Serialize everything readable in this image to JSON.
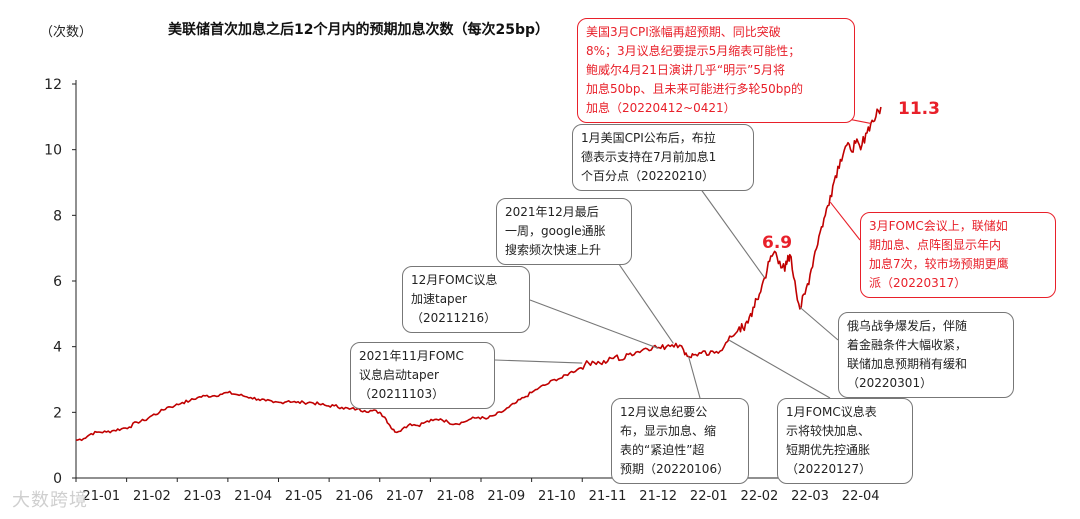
{
  "header": {
    "unit": "（次数）",
    "title": "美联储首次加息之后12个月内的预期加息次数（每次25bp）"
  },
  "watermark": "大数跨境",
  "colors": {
    "series": "#c00000",
    "annotation_red": "#e8202a",
    "annotation_gray": "#777777"
  },
  "labels": {
    "peak": "11.3",
    "mid_peak": "6.9"
  },
  "annotations": [
    {
      "id": "a1",
      "color": "gray",
      "text": "2021年11月FOMC\n议息启动taper\n（20211103）"
    },
    {
      "id": "a2",
      "color": "gray",
      "text": "12月FOMC议息\n加速taper\n（20211216）"
    },
    {
      "id": "a3",
      "color": "gray",
      "text": "2021年12月最后\n一周，google通胀\n搜索频次快速上升"
    },
    {
      "id": "a4",
      "color": "gray",
      "text": "1月美国CPI公布后，布拉\n德表示支持在7月前加息1\n个百分点（20220210）"
    },
    {
      "id": "a5",
      "color": "gray",
      "text": "12月议息纪要公\n布，显示加息、缩\n表的“紧迫性”超\n预期（20220106）"
    },
    {
      "id": "a6",
      "color": "gray",
      "text": "1月FOMC议息表\n示将较快加息、\n短期优先控通胀\n（20220127）"
    },
    {
      "id": "a7",
      "color": "gray",
      "text": "俄乌战争爆发后，伴随\n着金融条件大幅收紧，\n联储加息预期稍有缓和\n（20220301）"
    },
    {
      "id": "a8",
      "color": "red",
      "text": "3月FOMC会议上，联储如\n期加息、点阵图显示年内\n加息7次，较市场预期更鹰\n派（20220317）"
    },
    {
      "id": "a9",
      "color": "red",
      "text": "美国3月CPI涨幅再超预期、同比突破\n8%；3月议息纪要提示5月缩表可能性；\n鲍威尔4月21日演讲几乎“明示”5月将\n加息50bp、且未来可能进行多轮50bp的\n加息（20220412~0421）"
    }
  ],
  "chart_data": {
    "type": "line",
    "title": "美联储首次加息之后12个月内的预期加息次数（每次25bp）",
    "ylabel": "（次数）",
    "xlabel": "",
    "ylim": [
      0,
      12
    ],
    "yticks": [
      0,
      2,
      4,
      6,
      8,
      10,
      12
    ],
    "xticks": [
      "21-01",
      "21-02",
      "21-03",
      "21-04",
      "21-05",
      "21-06",
      "21-07",
      "21-08",
      "21-09",
      "21-10",
      "21-11",
      "21-12",
      "22-01",
      "22-02",
      "22-03",
      "22-04"
    ],
    "grid": false,
    "legend": "none",
    "series": [
      {
        "color": "#c00000",
        "points": [
          [
            0.0,
            1.15
          ],
          [
            0.15,
            1.2
          ],
          [
            0.3,
            1.35
          ],
          [
            0.45,
            1.4
          ],
          [
            0.6,
            1.4
          ],
          [
            0.75,
            1.45
          ],
          [
            0.9,
            1.5
          ],
          [
            1.05,
            1.55
          ],
          [
            1.2,
            1.7
          ],
          [
            1.35,
            1.75
          ],
          [
            1.5,
            1.9
          ],
          [
            1.65,
            2.0
          ],
          [
            1.8,
            2.15
          ],
          [
            1.95,
            2.2
          ],
          [
            2.1,
            2.3
          ],
          [
            2.25,
            2.35
          ],
          [
            2.4,
            2.45
          ],
          [
            2.55,
            2.5
          ],
          [
            2.7,
            2.5
          ],
          [
            2.85,
            2.55
          ],
          [
            3.0,
            2.6
          ],
          [
            3.15,
            2.55
          ],
          [
            3.3,
            2.5
          ],
          [
            3.45,
            2.45
          ],
          [
            3.6,
            2.4
          ],
          [
            3.75,
            2.35
          ],
          [
            3.9,
            2.3
          ],
          [
            4.05,
            2.3
          ],
          [
            4.2,
            2.35
          ],
          [
            4.35,
            2.3
          ],
          [
            4.5,
            2.3
          ],
          [
            4.65,
            2.3
          ],
          [
            4.8,
            2.25
          ],
          [
            4.95,
            2.2
          ],
          [
            5.1,
            2.2
          ],
          [
            5.25,
            2.15
          ],
          [
            5.4,
            2.1
          ],
          [
            5.55,
            2.1
          ],
          [
            5.7,
            2.05
          ],
          [
            5.85,
            2.05
          ],
          [
            6.0,
            2.0
          ],
          [
            6.1,
            1.85
          ],
          [
            6.2,
            1.6
          ],
          [
            6.3,
            1.4
          ],
          [
            6.45,
            1.5
          ],
          [
            6.6,
            1.65
          ],
          [
            6.75,
            1.6
          ],
          [
            6.9,
            1.7
          ],
          [
            7.05,
            1.75
          ],
          [
            7.2,
            1.8
          ],
          [
            7.35,
            1.7
          ],
          [
            7.5,
            1.65
          ],
          [
            7.65,
            1.7
          ],
          [
            7.8,
            1.8
          ],
          [
            7.95,
            1.85
          ],
          [
            8.1,
            1.8
          ],
          [
            8.25,
            1.9
          ],
          [
            8.4,
            2.0
          ],
          [
            8.55,
            2.15
          ],
          [
            8.7,
            2.3
          ],
          [
            8.85,
            2.45
          ],
          [
            9.0,
            2.6
          ],
          [
            9.15,
            2.75
          ],
          [
            9.3,
            2.85
          ],
          [
            9.45,
            3.0
          ],
          [
            9.6,
            3.05
          ],
          [
            9.75,
            3.2
          ],
          [
            9.9,
            3.3
          ],
          [
            10.05,
            3.45
          ],
          [
            10.2,
            3.55
          ],
          [
            10.35,
            3.5
          ],
          [
            10.5,
            3.55
          ],
          [
            10.65,
            3.7
          ],
          [
            10.8,
            3.6
          ],
          [
            10.95,
            3.8
          ],
          [
            11.1,
            3.85
          ],
          [
            11.25,
            3.95
          ],
          [
            11.4,
            4.0
          ],
          [
            11.55,
            3.95
          ],
          [
            11.7,
            4.05
          ],
          [
            11.85,
            4.1
          ],
          [
            12.0,
            3.9
          ],
          [
            12.1,
            3.7
          ],
          [
            12.2,
            3.75
          ],
          [
            12.35,
            3.8
          ],
          [
            12.5,
            3.75
          ],
          [
            12.65,
            3.85
          ],
          [
            12.8,
            4.0
          ],
          [
            12.95,
            4.3
          ],
          [
            13.1,
            4.6
          ],
          [
            13.2,
            4.5
          ],
          [
            13.3,
            4.9
          ],
          [
            13.4,
            5.2
          ],
          [
            13.5,
            5.6
          ],
          [
            13.6,
            6.1
          ],
          [
            13.7,
            6.6
          ],
          [
            13.8,
            6.9
          ],
          [
            13.9,
            6.6
          ],
          [
            14.0,
            6.3
          ],
          [
            14.05,
            6.6
          ],
          [
            14.1,
            6.8
          ],
          [
            14.2,
            6.0
          ],
          [
            14.3,
            5.15
          ],
          [
            14.4,
            5.6
          ],
          [
            14.5,
            6.2
          ],
          [
            14.6,
            6.9
          ],
          [
            14.7,
            7.5
          ],
          [
            14.8,
            8.0
          ],
          [
            14.9,
            8.6
          ],
          [
            15.0,
            9.2
          ],
          [
            15.1,
            9.7
          ],
          [
            15.2,
            10.1
          ],
          [
            15.3,
            10.0
          ],
          [
            15.4,
            10.2
          ],
          [
            15.5,
            10.0
          ],
          [
            15.6,
            10.5
          ],
          [
            15.7,
            10.8
          ],
          [
            15.8,
            11.0
          ],
          [
            15.9,
            11.3
          ]
        ]
      }
    ]
  }
}
